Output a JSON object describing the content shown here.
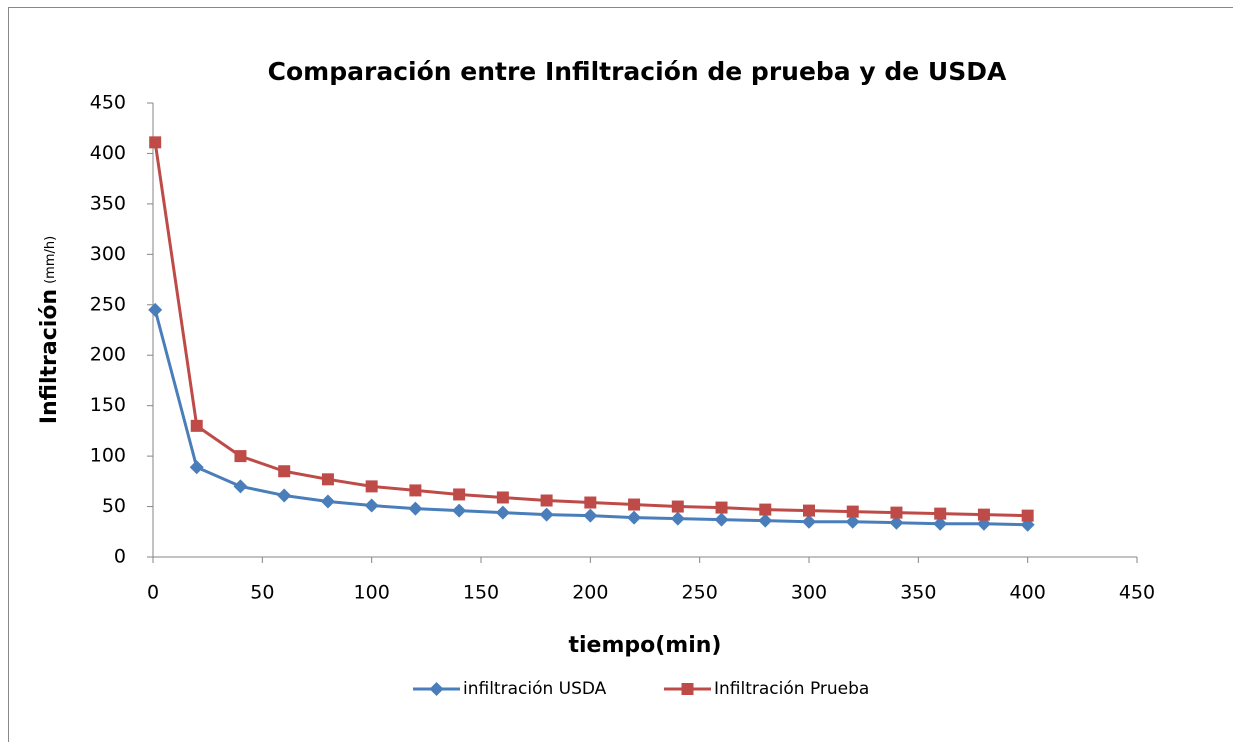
{
  "chart_data": {
    "type": "line",
    "title": "Comparación entre Infiltración de prueba y de USDA",
    "x_label": "tiempo(min)",
    "y_label": "Infiltración",
    "y_label_unit": "(mm/h)",
    "x": [
      1,
      20,
      40,
      60,
      80,
      100,
      120,
      140,
      160,
      180,
      200,
      220,
      240,
      260,
      280,
      300,
      320,
      340,
      360,
      380,
      400
    ],
    "series": [
      {
        "name": "infiltración USDA",
        "color": "#4a7ebb",
        "marker": "diamond",
        "values": [
          245,
          89,
          70,
          61,
          55,
          51,
          48,
          46,
          44,
          42,
          41,
          39,
          38,
          37,
          36,
          35,
          35,
          34,
          33,
          33,
          32
        ]
      },
      {
        "name": "Infiltración Prueba",
        "color": "#be4b48",
        "marker": "square",
        "values": [
          411,
          130,
          100,
          85,
          77,
          70,
          66,
          62,
          59,
          56,
          54,
          52,
          50,
          49,
          47,
          46,
          45,
          44,
          43,
          42,
          41
        ]
      }
    ],
    "xlim": [
      0,
      450
    ],
    "xticks": [
      0,
      50,
      100,
      150,
      200,
      250,
      300,
      350,
      400,
      450
    ],
    "ylim": [
      0,
      450
    ],
    "yticks": [
      0,
      50,
      100,
      150,
      200,
      250,
      300,
      350,
      400,
      450
    ],
    "grid": false,
    "legend": "bottom"
  }
}
